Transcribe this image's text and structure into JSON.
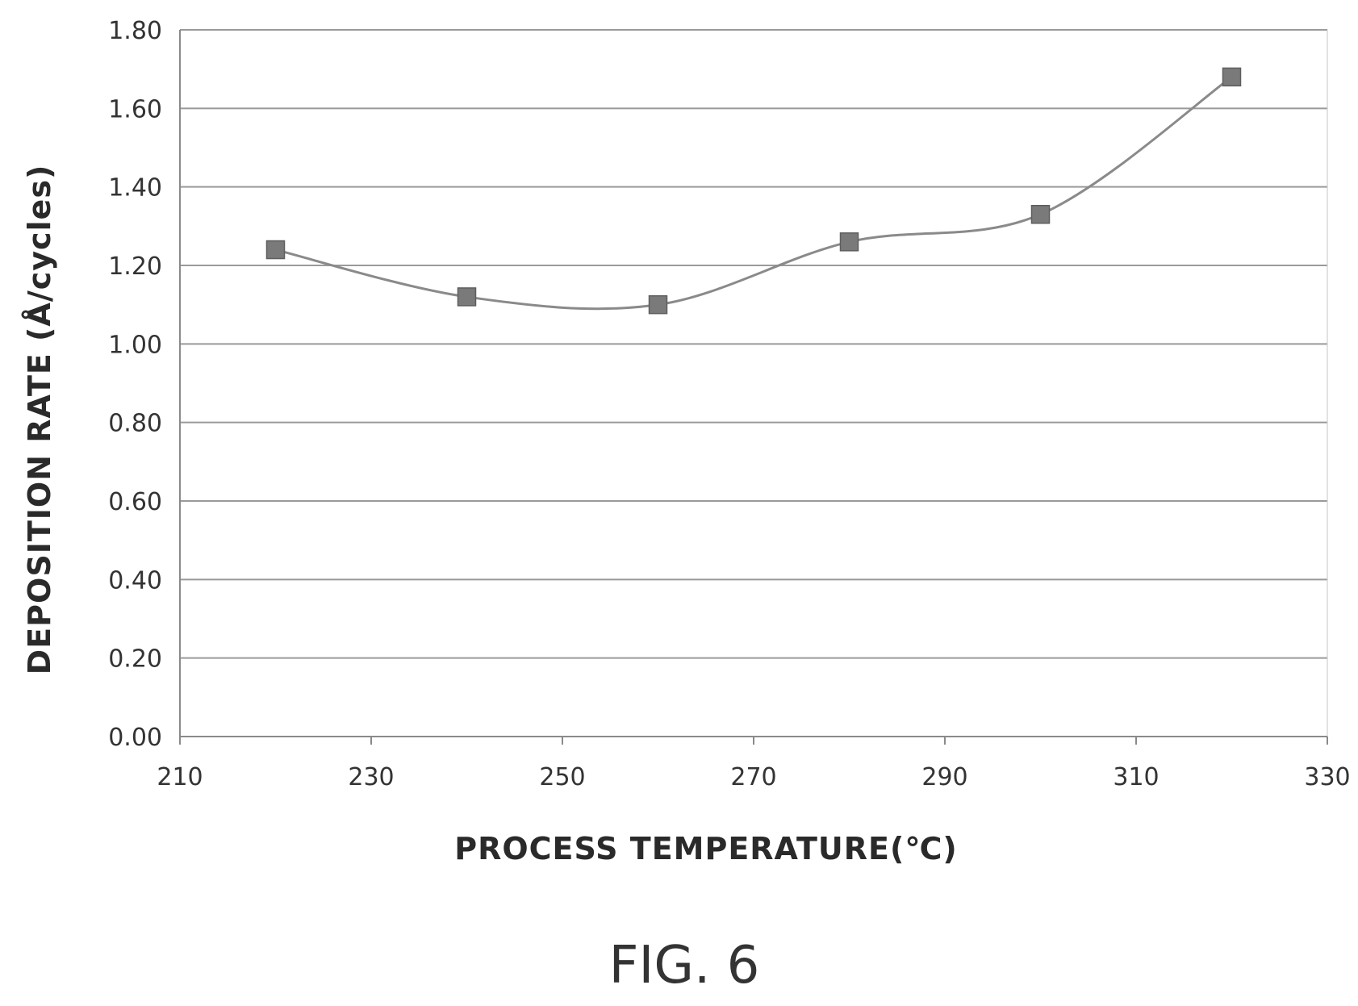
{
  "chart_data": {
    "type": "line",
    "title": "",
    "xlabel": "PROCESS TEMPERATURE(℃)",
    "ylabel": "DEPOSITION RATE (Å/cycles)",
    "xlim": [
      210,
      330
    ],
    "ylim": [
      0,
      1.8
    ],
    "x_ticks": [
      "210",
      "230",
      "250",
      "270",
      "290",
      "310",
      "330"
    ],
    "y_ticks": [
      "0.00",
      "0.20",
      "0.40",
      "0.60",
      "0.80",
      "1.00",
      "1.20",
      "1.40",
      "1.60",
      "1.80"
    ],
    "grid": true,
    "smooth": true,
    "marker": "square",
    "series": [
      {
        "x": [
          220,
          240,
          260,
          280,
          300,
          320
        ],
        "y": [
          1.24,
          1.12,
          1.1,
          1.26,
          1.33,
          1.68
        ]
      }
    ],
    "colors": {
      "line": "#8a8a8a",
      "marker": "#7a7a7a",
      "grid": "#9a9a9a"
    }
  },
  "caption": "FIG. 6"
}
